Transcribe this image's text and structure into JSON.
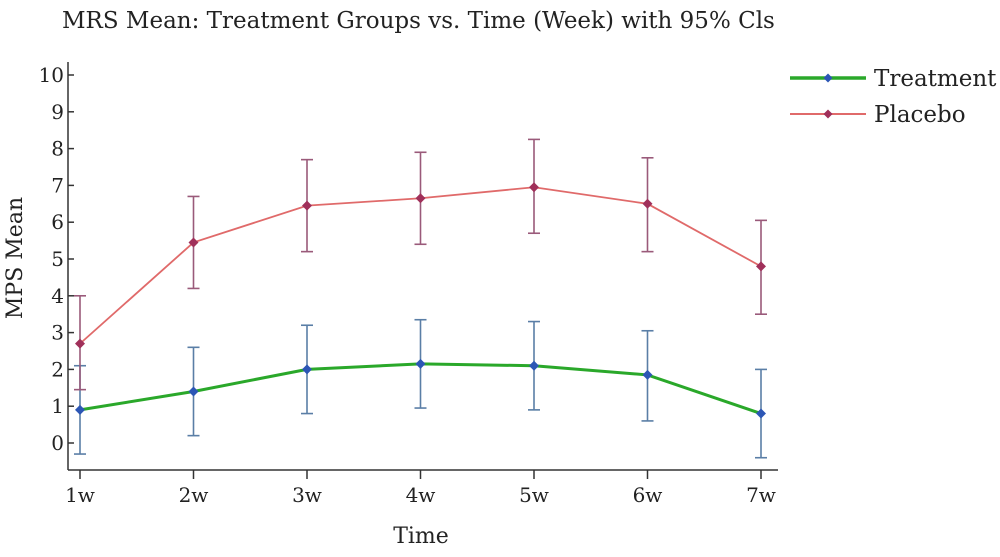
{
  "chart_data": {
    "type": "line",
    "title": "MRS Mean: Treatment Groups vs. Time (Week) with 95% Cls",
    "xlabel": "Time",
    "ylabel": "MPS Mean",
    "categories": [
      "1w",
      "2w",
      "3w",
      "4w",
      "5w",
      "6w",
      "7w"
    ],
    "yticks": [
      "0",
      "1",
      "2",
      "3",
      "4",
      "5",
      "6",
      "7",
      "8",
      "9",
      "10"
    ],
    "ylim": [
      -0.6,
      10.3
    ],
    "grid": false,
    "legend": "top-right",
    "series": [
      {
        "name": "Treatment",
        "color": "#2aa82a",
        "marker_color": "#2c56b5",
        "error_color": "#5a7ea6",
        "values": [
          0.9,
          1.4,
          2.0,
          2.15,
          2.1,
          1.85,
          0.8
        ],
        "lower": [
          -0.3,
          0.2,
          0.8,
          0.95,
          0.9,
          0.6,
          -0.4
        ],
        "upper": [
          2.1,
          2.6,
          3.2,
          3.35,
          3.3,
          3.05,
          2.0
        ]
      },
      {
        "name": "Placebo",
        "color": "#e06a6a",
        "marker_color": "#a0305a",
        "error_color": "#9a5a7a",
        "values": [
          2.7,
          5.45,
          6.45,
          6.65,
          6.95,
          6.5,
          4.8
        ],
        "lower": [
          1.45,
          4.2,
          5.2,
          5.4,
          5.7,
          5.2,
          3.5
        ],
        "upper": [
          4.0,
          6.7,
          7.7,
          7.9,
          8.25,
          7.75,
          6.05
        ]
      }
    ]
  }
}
